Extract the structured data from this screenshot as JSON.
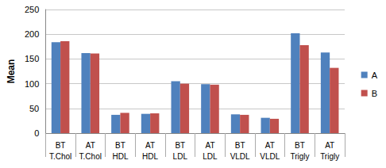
{
  "chart_data": {
    "type": "bar",
    "categories": [
      "BT\nT.Chol",
      "AT\nT.Chol",
      "BT\nHDL",
      "AT\nHDL",
      "BT\nLDL",
      "AT\nLDL",
      "BT\nVLDL",
      "AT\nVLDL",
      "BT\nTrigly",
      "AT\nTrigly"
    ],
    "series": [
      {
        "name": "A",
        "color": "#4f81bd",
        "values": [
          184,
          162,
          37,
          39,
          105,
          99,
          38,
          31,
          202,
          163
        ]
      },
      {
        "name": "B",
        "color": "#c0504d",
        "values": [
          186,
          161,
          41,
          40,
          100,
          98,
          37,
          29,
          178,
          132
        ]
      }
    ],
    "y_label": "Mean",
    "ylim": [
      0,
      250
    ],
    "yticks": [
      0,
      50,
      100,
      150,
      200,
      250
    ],
    "grid": true,
    "legend": "right"
  }
}
